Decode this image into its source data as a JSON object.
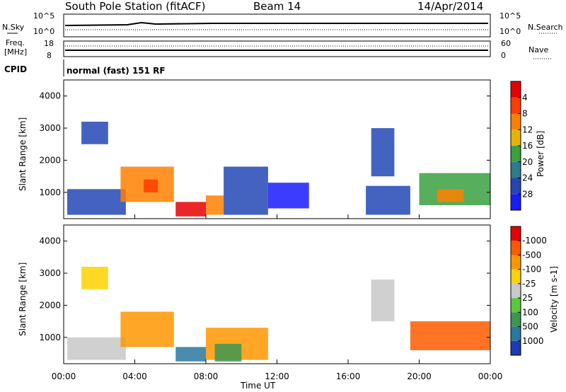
{
  "header": {
    "station": "South Pole Station (fitACF)",
    "beam": "Beam 14",
    "date": "14/Apr/2014"
  },
  "top_panels": {
    "nsky_label": "N.Sky",
    "nsearch_label": "N.Search",
    "nsky_ticks": [
      "10^5",
      "10^0"
    ],
    "nsearch_ticks": [
      "10^5",
      "10^0"
    ],
    "freq_label_1": "Freq.",
    "freq_label_2": "[MHz]",
    "freq_ticks": [
      "18",
      "8"
    ],
    "nave_label": "Nave",
    "nave_ticks": [
      "60",
      "0"
    ],
    "cpid_label": "CPID",
    "cpid_text": "normal (fast) 151 RF"
  },
  "chart_data": [
    {
      "type": "heatmap",
      "panel": "power",
      "ylabel": "Slant Range [km]",
      "xlabel": "",
      "ylim": [
        180,
        4500
      ],
      "xlim": [
        0,
        24
      ],
      "yticks": [
        1000,
        2000,
        3000,
        4000
      ],
      "colorbar_label": "Power [dB]",
      "colorbar_ticks": [
        "4",
        "8",
        "12",
        "16",
        "20",
        "24",
        "28"
      ],
      "colorbar_colors": [
        "#1a1aff",
        "#2346b4",
        "#2f7a8c",
        "#3aa040",
        "#e6b400",
        "#ff8000",
        "#ff3c00",
        "#e60000"
      ],
      "regions": [
        {
          "t0": 0.2,
          "t1": 3.5,
          "r0": 300,
          "r1": 1100,
          "level": 1
        },
        {
          "t0": 3.2,
          "t1": 6.2,
          "r0": 700,
          "r1": 1800,
          "level": 5
        },
        {
          "t0": 4.5,
          "t1": 5.3,
          "r0": 1000,
          "r1": 1400,
          "level": 6
        },
        {
          "t0": 6.3,
          "t1": 8.0,
          "r0": 250,
          "r1": 700,
          "level": 7
        },
        {
          "t0": 8.0,
          "t1": 9.0,
          "r0": 300,
          "r1": 900,
          "level": 5
        },
        {
          "t0": 9.0,
          "t1": 11.5,
          "r0": 300,
          "r1": 1800,
          "level": 1
        },
        {
          "t0": 11.5,
          "t1": 13.8,
          "r0": 500,
          "r1": 1300,
          "level": 0
        },
        {
          "t0": 17.3,
          "t1": 18.6,
          "r0": 1500,
          "r1": 3000,
          "level": 1
        },
        {
          "t0": 17.0,
          "t1": 19.5,
          "r0": 300,
          "r1": 1200,
          "level": 1
        },
        {
          "t0": 20.0,
          "t1": 24.0,
          "r0": 600,
          "r1": 1600,
          "level": 3
        },
        {
          "t0": 21.0,
          "t1": 22.5,
          "r0": 700,
          "r1": 1100,
          "level": 5
        },
        {
          "t0": 1.0,
          "t1": 2.5,
          "r0": 2500,
          "r1": 3200,
          "level": 1
        }
      ]
    },
    {
      "type": "heatmap",
      "panel": "velocity",
      "ylabel": "Slant Range [km]",
      "xlabel": "Time UT",
      "ylim": [
        180,
        4500
      ],
      "xlim": [
        0,
        24
      ],
      "yticks": [
        1000,
        2000,
        3000,
        4000
      ],
      "xticks": [
        "00:00",
        "04:00",
        "08:00",
        "12:00",
        "16:00",
        "20:00",
        "00:00"
      ],
      "colorbar_label": "Velocity [m s-1]",
      "colorbar_ticks": [
        "1000",
        "500",
        "100",
        "25",
        "-25",
        "-100",
        "-500",
        "-1000"
      ],
      "colorbar_colors": [
        "#1a3cb4",
        "#2a78a0",
        "#3c9650",
        "#5ac83c",
        "#c8c8c8",
        "#ffd200",
        "#ff9600",
        "#ff5a00",
        "#e60000"
      ],
      "regions": [
        {
          "t0": 0.2,
          "t1": 3.5,
          "r0": 300,
          "r1": 1000,
          "level": 4
        },
        {
          "t0": 3.2,
          "t1": 6.2,
          "r0": 700,
          "r1": 1800,
          "level": 6
        },
        {
          "t0": 6.3,
          "t1": 8.0,
          "r0": 250,
          "r1": 700,
          "level": 1
        },
        {
          "t0": 8.0,
          "t1": 11.5,
          "r0": 300,
          "r1": 1300,
          "level": 6
        },
        {
          "t0": 8.5,
          "t1": 10.0,
          "r0": 250,
          "r1": 800,
          "level": 2
        },
        {
          "t0": 17.3,
          "t1": 18.6,
          "r0": 1500,
          "r1": 2800,
          "level": 4
        },
        {
          "t0": 19.5,
          "t1": 24.0,
          "r0": 600,
          "r1": 1500,
          "level": 7
        },
        {
          "t0": 1.0,
          "t1": 2.5,
          "r0": 2500,
          "r1": 3200,
          "level": 5
        }
      ]
    }
  ]
}
